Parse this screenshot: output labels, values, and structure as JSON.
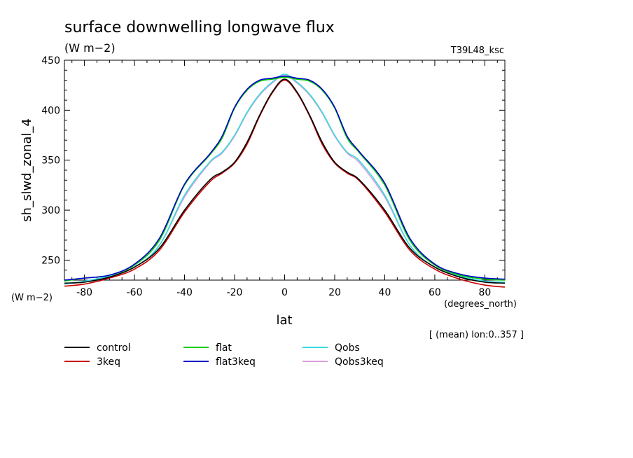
{
  "chart_data": {
    "type": "line",
    "title": "surface downwelling longwave flux",
    "subtitle": "(W m−2)",
    "run_label": "T39L48_ksc",
    "ylabel": "sh_slwd_zonal_4",
    "yunits": "(W m−2)",
    "xlabel": "lat",
    "xunits": "(degrees_north)",
    "footnote": "[ (mean) lon:0..357 ]",
    "xlim": [
      -88,
      88
    ],
    "ylim": [
      230,
      450
    ],
    "xticks": [
      "-80",
      "-60",
      "-40",
      "-20",
      "0",
      "20",
      "40",
      "60",
      "80"
    ],
    "xtick_values": [
      -80,
      -60,
      -40,
      -20,
      0,
      20,
      40,
      60,
      80
    ],
    "yticks": [
      "250",
      "300",
      "350",
      "400",
      "450"
    ],
    "ytick_values": [
      250,
      300,
      350,
      400,
      450
    ],
    "x": [
      -88,
      -80,
      -70,
      -60,
      -50,
      -40,
      -30,
      -25,
      -20,
      -15,
      -10,
      -5,
      0,
      5,
      10,
      15,
      20,
      25,
      30,
      40,
      50,
      60,
      70,
      80,
      88
    ],
    "series": [
      {
        "name": "control",
        "color": "#000000",
        "values": [
          227,
          228,
          233,
          243,
          262,
          300,
          330,
          338,
          348,
          368,
          395,
          418,
          431,
          418,
          395,
          368,
          348,
          338,
          330,
          300,
          262,
          243,
          233,
          228,
          227
        ]
      },
      {
        "name": "3keq",
        "color": "#cc0000",
        "values": [
          224,
          226,
          232,
          241,
          260,
          298,
          328,
          337,
          347,
          366,
          394,
          417,
          430,
          417,
          394,
          366,
          347,
          337,
          329,
          298,
          260,
          241,
          231,
          225,
          223
        ]
      },
      {
        "name": "flat",
        "color": "#00cc00",
        "values": [
          229,
          232,
          235,
          245,
          270,
          325,
          355,
          372,
          402,
          420,
          429,
          431,
          433,
          431,
          429,
          420,
          402,
          372,
          357,
          325,
          270,
          245,
          235,
          231,
          230
        ]
      },
      {
        "name": "flat3keq",
        "color": "#0000cc",
        "values": [
          230,
          232,
          235,
          246,
          272,
          326,
          356,
          374,
          403,
          421,
          430,
          432,
          434,
          432,
          430,
          421,
          403,
          374,
          358,
          327,
          272,
          246,
          236,
          232,
          231
        ]
      },
      {
        "name": "Qobs",
        "color": "#33dddd",
        "values": [
          226,
          229,
          234,
          243,
          265,
          315,
          348,
          358,
          375,
          398,
          416,
          428,
          436,
          428,
          416,
          398,
          375,
          358,
          349,
          315,
          265,
          243,
          234,
          229,
          228
        ]
      },
      {
        "name": "Qobs3keq",
        "color": "#dda0dd",
        "values": [
          226,
          229,
          234,
          243,
          265,
          313,
          347,
          357,
          374,
          397,
          415,
          427,
          435,
          427,
          415,
          397,
          374,
          357,
          347,
          313,
          265,
          243,
          234,
          229,
          228
        ]
      }
    ],
    "grid": false,
    "legend_position": "bottom"
  }
}
